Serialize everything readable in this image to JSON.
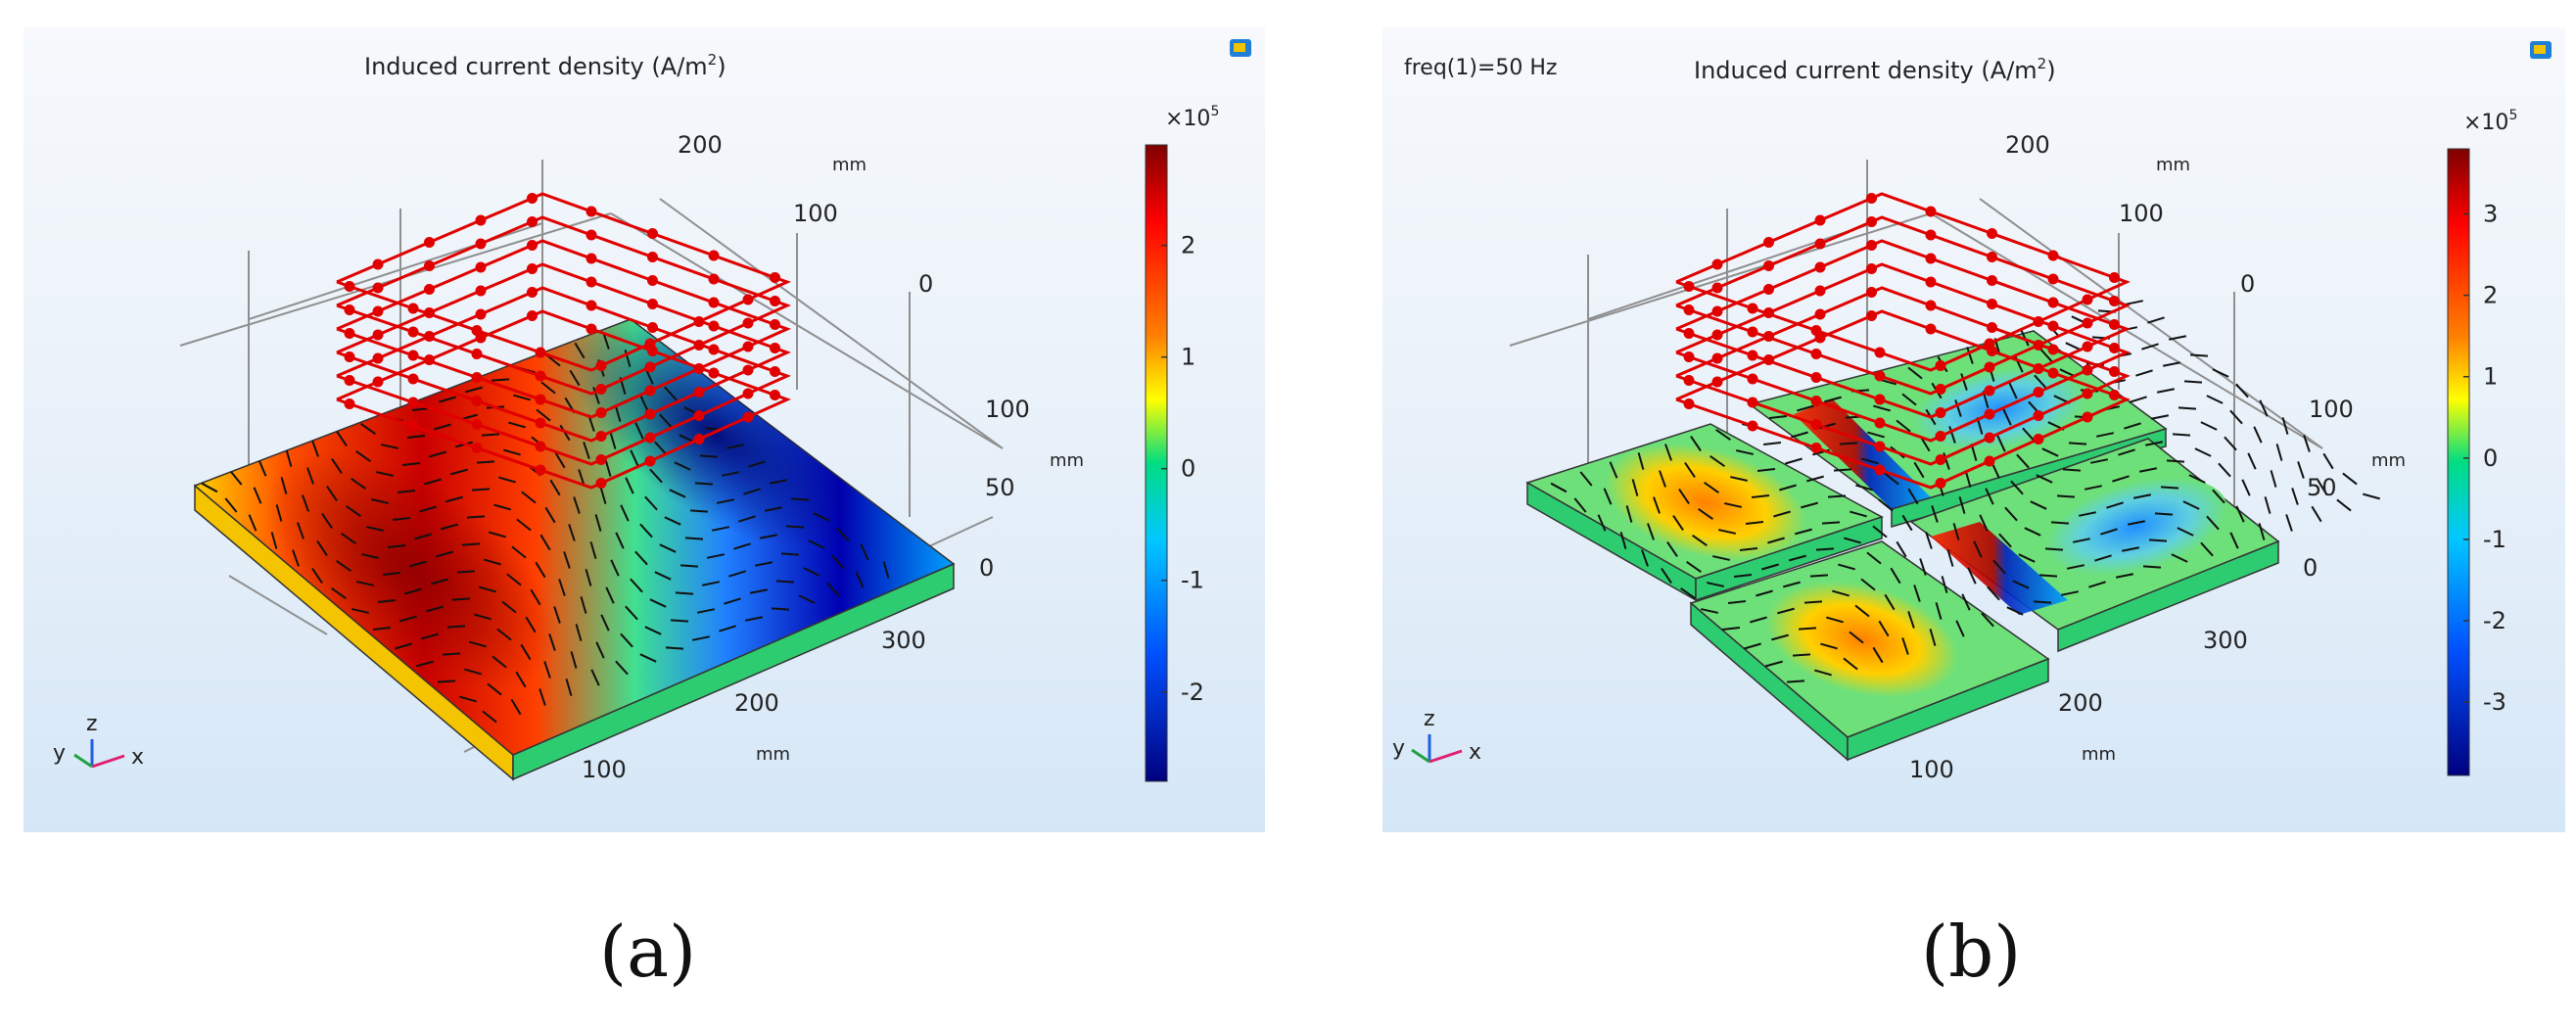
{
  "panels": [
    {
      "id": "a",
      "caption": "(a)",
      "header": "",
      "title": "Induced current density",
      "title_unit": "(A/m",
      "title_sup": "2",
      "title_close": ")",
      "colorbar": {
        "multiplier": "×10",
        "multiplier_exp": "5",
        "ticks": [
          "2",
          "1",
          "0",
          "-1",
          "-2"
        ],
        "min": -2.8,
        "max": 2.9
      },
      "axes": {
        "z_ticks": [
          "200",
          "100",
          "0"
        ],
        "z_unit": "mm",
        "y_ticks": [
          "100",
          "50",
          "0"
        ],
        "y_unit": "mm",
        "x_ticks": [
          "300",
          "200",
          "100"
        ],
        "x_unit": "mm"
      },
      "triad": {
        "x": "x",
        "y": "y",
        "z": "z"
      }
    },
    {
      "id": "b",
      "caption": "(b)",
      "header": "freq(1)=50 Hz",
      "title": "Induced current density",
      "title_unit": "(A/m",
      "title_sup": "2",
      "title_close": ")",
      "colorbar": {
        "multiplier": "×10",
        "multiplier_exp": "5",
        "ticks": [
          "3",
          "2",
          "1",
          "0",
          "-1",
          "-2",
          "-3"
        ],
        "min": -3.9,
        "max": 3.8
      },
      "axes": {
        "z_ticks": [
          "200",
          "100",
          "0"
        ],
        "z_unit": "mm",
        "y_ticks": [
          "100",
          "50",
          "0"
        ],
        "y_unit": "mm",
        "x_ticks": [
          "300",
          "200",
          "100"
        ],
        "x_unit": "mm"
      },
      "triad": {
        "x": "x",
        "y": "y",
        "z": "z"
      }
    }
  ],
  "colors": {
    "colormap": [
      "#7f0000",
      "#ff0000",
      "#ff8000",
      "#ffff00",
      "#00dc82",
      "#00c8ff",
      "#0050ff",
      "#000080"
    ],
    "arrow": "#e00000",
    "field_arrow": "#111111",
    "plate_side": "#2ecc71",
    "grid": "#8f8f8f"
  }
}
